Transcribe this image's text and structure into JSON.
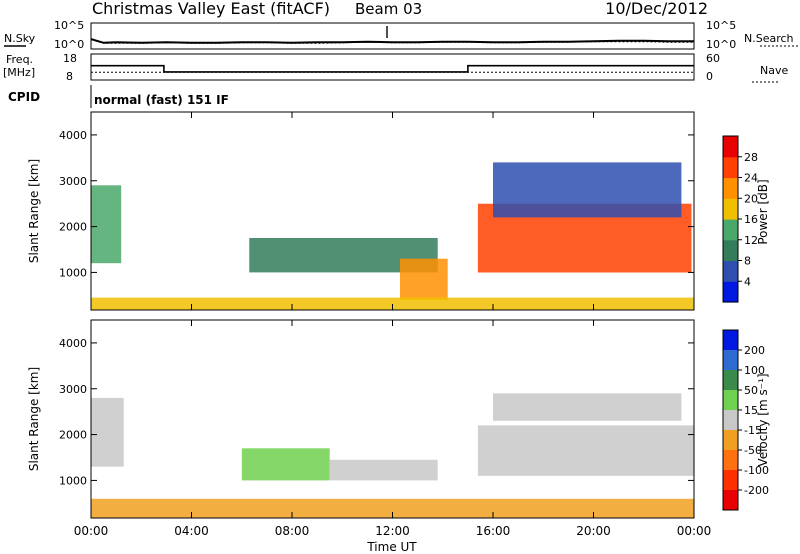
{
  "header": {
    "title": "Christmas Valley East (fitACF)",
    "beam": "Beam 03",
    "date": "10/Dec/2012"
  },
  "noise_panel": {
    "left_label": "N.Sky",
    "left_ticks": [
      "10^5",
      "10^0"
    ],
    "right_label": "N.Search",
    "right_ticks": [
      "10^5",
      "10^0"
    ]
  },
  "freq_panel": {
    "left_label_1": "Freq.",
    "left_label_2": "[MHz]",
    "left_ticks": [
      "18",
      "8"
    ],
    "right_label": "Nave",
    "right_ticks": [
      "60",
      "0"
    ]
  },
  "cpid": {
    "label": "CPID",
    "mode": "normal (fast) 151 IF"
  },
  "xaxis": {
    "label": "Time UT",
    "ticks": [
      "00:00",
      "04:00",
      "08:00",
      "12:00",
      "16:00",
      "20:00",
      "00:00"
    ]
  },
  "colors": {
    "power": [
      "#0018e0",
      "#2e4fb0",
      "#337d5a",
      "#4aa86a",
      "#f0c000",
      "#ff9000",
      "#ff4000",
      "#e80000"
    ],
    "velocity": [
      "#0018e0",
      "#2e6bd0",
      "#3a8a4a",
      "#70d050",
      "#c8c8c8",
      "#f0a020",
      "#ff7010",
      "#ff3000",
      "#e80000"
    ]
  },
  "chart_data": [
    {
      "type": "line",
      "title": "N.Sky / N.Search",
      "xlabel": "",
      "ylabel": "N.Sky",
      "x_hours": [
        0,
        0.5,
        1,
        2,
        3,
        4,
        5,
        6,
        7,
        8,
        9,
        10,
        11,
        12,
        13,
        14,
        15,
        16,
        17,
        18,
        19,
        20,
        21,
        22,
        23,
        24
      ],
      "series": [
        {
          "name": "N.Sky",
          "values": [
            1.9,
            1.2,
            1.3,
            1.2,
            1.3,
            1.2,
            1.2,
            1.3,
            1.3,
            1.2,
            1.3,
            1.3,
            1.4,
            1.3,
            1.3,
            1.4,
            1.4,
            1.3,
            1.3,
            1.4,
            1.4,
            1.5,
            1.6,
            1.6,
            1.5,
            1.5
          ]
        },
        {
          "name": "N.Search",
          "values": [
            1.8,
            1.1,
            1.1,
            1.1,
            1.2,
            1.1,
            1.1,
            1.2,
            1.2,
            1.1,
            1.1,
            1.2,
            1.3,
            1.2,
            1.2,
            1.3,
            1.3,
            1.2,
            1.2,
            1.3,
            1.3,
            1.4,
            1.4,
            1.4,
            1.3,
            1.3
          ]
        }
      ],
      "ylim": [
        0,
        5
      ],
      "log_scale": true
    },
    {
      "type": "line",
      "title": "Freq. / Nave",
      "ylabel": "Freq. [MHz]",
      "ylim": [
        8,
        18
      ],
      "series": [
        {
          "name": "Freq.",
          "x_hours": [
            0,
            2.9,
            2.9,
            15.0,
            15.0,
            24
          ],
          "values": [
            13.5,
            13.5,
            11.1,
            11.1,
            13.5,
            13.5
          ]
        },
        {
          "name": "Nave",
          "x_hours": [
            0,
            24
          ],
          "values": [
            11,
            11
          ]
        }
      ]
    },
    {
      "type": "heatmap",
      "title": "Power [dB]",
      "xlabel": "Time UT",
      "ylabel": "Slant Range [km]",
      "xlim_hours": [
        0,
        24
      ],
      "ylim": [
        180,
        4500
      ],
      "yticks": [
        1000,
        2000,
        3000,
        4000
      ],
      "colorbar": {
        "label": "Power [dB]",
        "ticks": [
          "4",
          "8",
          "12",
          "16",
          "20",
          "24",
          "28"
        ],
        "min": 0,
        "max": 32
      },
      "regions": [
        {
          "t0": 0.0,
          "t1": 1.2,
          "r0": 1200,
          "r1": 2900,
          "value": 14
        },
        {
          "t0": 6.3,
          "t1": 13.8,
          "r0": 1000,
          "r1": 1750,
          "value": 8
        },
        {
          "t0": 12.3,
          "t1": 14.2,
          "r0": 400,
          "r1": 1300,
          "value": 20
        },
        {
          "t0": 15.4,
          "t1": 23.9,
          "r0": 1000,
          "r1": 2500,
          "value": 24
        },
        {
          "t0": 16.0,
          "t1": 23.5,
          "r0": 2200,
          "r1": 3400,
          "value": 4
        },
        {
          "t0": 0.0,
          "t1": 24.0,
          "r0": 180,
          "r1": 450,
          "value": 16
        }
      ]
    },
    {
      "type": "heatmap",
      "title": "Velocity [m s^-1]",
      "xlabel": "Time UT",
      "ylabel": "Slant Range [km]",
      "xlim_hours": [
        0,
        24
      ],
      "ylim": [
        180,
        4500
      ],
      "yticks": [
        1000,
        2000,
        3000,
        4000
      ],
      "colorbar": {
        "label": "Velocity [m s⁻¹]",
        "ticks": [
          "200",
          "100",
          "50",
          "15",
          "-15",
          "-50",
          "-100",
          "-200"
        ],
        "min": -250,
        "max": 250
      },
      "regions": [
        {
          "t0": 0.0,
          "t1": 1.3,
          "r0": 1300,
          "r1": 2800,
          "value": 0
        },
        {
          "t0": 6.0,
          "t1": 9.5,
          "r0": 1000,
          "r1": 1700,
          "value": 30
        },
        {
          "t0": 9.5,
          "t1": 13.8,
          "r0": 1000,
          "r1": 1450,
          "value": 0
        },
        {
          "t0": 15.4,
          "t1": 24.0,
          "r0": 1100,
          "r1": 2200,
          "value": 0
        },
        {
          "t0": 16.0,
          "t1": 23.5,
          "r0": 2300,
          "r1": 2900,
          "value": 0
        },
        {
          "t0": 0.0,
          "t1": 24.0,
          "r0": 180,
          "r1": 600,
          "value": -30
        }
      ]
    }
  ]
}
